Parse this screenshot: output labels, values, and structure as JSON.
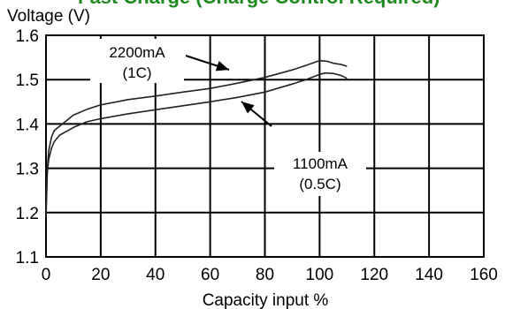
{
  "chart_data": {
    "type": "line",
    "title": "Fast Charge (Charge Control Required)",
    "title_color": "#1f8a1f",
    "xlabel": "Capacity input %",
    "ylabel": "Voltage (V)",
    "xlim": [
      0,
      160
    ],
    "ylim": [
      1.1,
      1.6
    ],
    "x_ticks": [
      0,
      20,
      40,
      60,
      80,
      100,
      120,
      140,
      160
    ],
    "y_ticks": [
      "1.1",
      "1.2",
      "1.3",
      "1.4",
      "1.5",
      "1.6"
    ],
    "grid": true,
    "line_color": "#222222",
    "series": [
      {
        "name": "2200mA (1C)",
        "x": [
          0,
          0.5,
          1,
          2,
          3,
          5,
          8,
          10,
          15,
          20,
          30,
          40,
          50,
          60,
          70,
          80,
          90,
          95,
          100,
          103,
          105,
          108,
          110
        ],
        "values": [
          1.2,
          1.3,
          1.34,
          1.37,
          1.385,
          1.395,
          1.41,
          1.42,
          1.433,
          1.443,
          1.455,
          1.463,
          1.472,
          1.48,
          1.492,
          1.505,
          1.522,
          1.532,
          1.543,
          1.541,
          1.537,
          1.534,
          1.53
        ]
      },
      {
        "name": "1100mA (0.5C)",
        "x": [
          0,
          0.5,
          1,
          2,
          3,
          5,
          8,
          10,
          15,
          20,
          30,
          40,
          50,
          60,
          70,
          80,
          90,
          95,
          100,
          102,
          105,
          108,
          110
        ],
        "values": [
          1.19,
          1.29,
          1.32,
          1.345,
          1.36,
          1.375,
          1.385,
          1.392,
          1.405,
          1.412,
          1.423,
          1.432,
          1.441,
          1.45,
          1.46,
          1.472,
          1.49,
          1.5,
          1.512,
          1.515,
          1.514,
          1.509,
          1.503
        ]
      }
    ],
    "annotations": [
      {
        "line1": "2200mA",
        "line2": "(1C)",
        "series": 0
      },
      {
        "line1": "1100mA",
        "line2": "(0.5C)",
        "series": 1
      }
    ]
  }
}
